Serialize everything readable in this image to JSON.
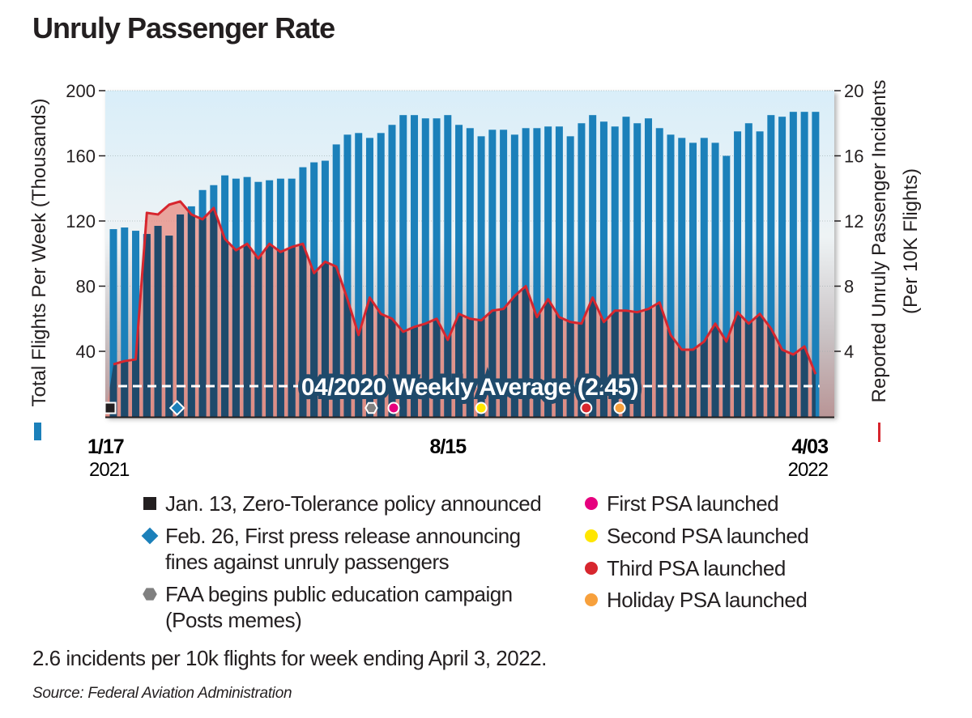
{
  "title": "Unruly Passenger Rate",
  "footnote": "2.6 incidents per 10k flights for week ending April 3, 2022.",
  "source": "Source: Federal Aviation Administration",
  "colors": {
    "bars": "#1b80ba",
    "bars_under_line": "#1f4a6b",
    "line": "#d7262e",
    "area": "#e8897f"
  },
  "legend": [
    {
      "icon": "black-square",
      "color": "#231f20",
      "lines": [
        "Jan. 13, Zero-Tolerance policy announced"
      ]
    },
    {
      "icon": "blue-diamond",
      "color": "#1b80ba",
      "lines": [
        "Feb. 26, First press release announcing",
        "fines against unruly passengers"
      ]
    },
    {
      "icon": "gray-hexagon",
      "color": "#808080",
      "lines": [
        "FAA begins public education campaign",
        "(Posts memes)"
      ]
    },
    {
      "icon": "pink-dot",
      "color": "#e6007e",
      "lines": [
        "First PSA launched"
      ]
    },
    {
      "icon": "yellow-dot",
      "color": "#ffe600",
      "lines": [
        "Second PSA launched"
      ]
    },
    {
      "icon": "red-dot",
      "color": "#d7262e",
      "lines": [
        "Third PSA launched"
      ]
    },
    {
      "icon": "orange-dot",
      "color": "#f7a03c",
      "lines": [
        "Holiday PSA launched"
      ]
    }
  ],
  "chart_data": {
    "type": "bar+line",
    "title": "Unruly Passenger Rate",
    "ylabel": "Total Flights Per Week (Thousands)",
    "y2label": [
      "Reported Unruly Passenger Incidents",
      "(Per 10K Flights)"
    ],
    "ylim": [
      0,
      200
    ],
    "y2lim": [
      0,
      20
    ],
    "yticks": [
      "200",
      "160",
      "120",
      "80",
      "40"
    ],
    "y2ticks": [
      "20",
      "16",
      "12",
      "8",
      "4"
    ],
    "xticks": [
      {
        "label": "1/17",
        "year": "2021",
        "week": 0
      },
      {
        "label": "8/15",
        "year": "",
        "week": 30
      },
      {
        "label": "4/03",
        "year": "2022",
        "week": 63
      }
    ],
    "x_start": "2021-01-17",
    "x_end": "2022-04-03",
    "x_interval": "weekly",
    "series": [
      {
        "name": "Total Flights Per Week (Thousands)",
        "axis": "left",
        "kind": "bar",
        "values": [
          115,
          116,
          114,
          112,
          117,
          111,
          124,
          129,
          139,
          142,
          148,
          146,
          147,
          144,
          145,
          146,
          146,
          153,
          156,
          157,
          167,
          173,
          174,
          171,
          174,
          179,
          185,
          185,
          183,
          183,
          185,
          179,
          177,
          172,
          176,
          176,
          173,
          177,
          177,
          178,
          178,
          172,
          180,
          185,
          181,
          178,
          184,
          180,
          183,
          177,
          173,
          171,
          168,
          171,
          168,
          160,
          175,
          180,
          175,
          185,
          184,
          187,
          187,
          187
        ]
      },
      {
        "name": "Reported Unruly Passenger Incidents (Per 10K Flights)",
        "axis": "right",
        "kind": "line",
        "values": [
          3.2,
          3.4,
          3.5,
          12.5,
          12.4,
          13.0,
          13.2,
          12.4,
          12.1,
          12.8,
          10.9,
          10.2,
          10.6,
          9.7,
          10.6,
          10.1,
          10.4,
          10.6,
          8.8,
          9.5,
          9.2,
          7.2,
          5.0,
          7.3,
          6.3,
          6.0,
          5.2,
          5.5,
          5.7,
          6.0,
          4.7,
          6.3,
          6.0,
          5.9,
          6.5,
          6.6,
          7.4,
          8.0,
          6.1,
          7.2,
          6.1,
          5.8,
          5.7,
          7.3,
          5.8,
          6.5,
          6.5,
          6.4,
          6.6,
          7.0,
          5.0,
          4.1,
          4.1,
          4.6,
          5.7,
          4.6,
          6.4,
          5.7,
          6.3,
          5.4,
          4.1,
          3.8,
          4.3,
          2.6
        ]
      }
    ],
    "reference_line": {
      "label": "04/2020 Weekly Average (2.45)",
      "value": 2.45,
      "axis": "right",
      "style": "dashed"
    },
    "event_markers": [
      {
        "legend_index": 0,
        "date": "2021-01-13"
      },
      {
        "legend_index": 1,
        "date": "2021-02-26"
      },
      {
        "legend_index": 2,
        "date": "2021-06-28"
      },
      {
        "legend_index": 3,
        "date": "2021-07-12"
      },
      {
        "legend_index": 4,
        "date": "2021-09-05"
      },
      {
        "legend_index": 5,
        "date": "2021-11-10"
      },
      {
        "legend_index": 6,
        "date": "2021-12-01"
      }
    ],
    "grid": true,
    "legend_placement": "bottom"
  }
}
